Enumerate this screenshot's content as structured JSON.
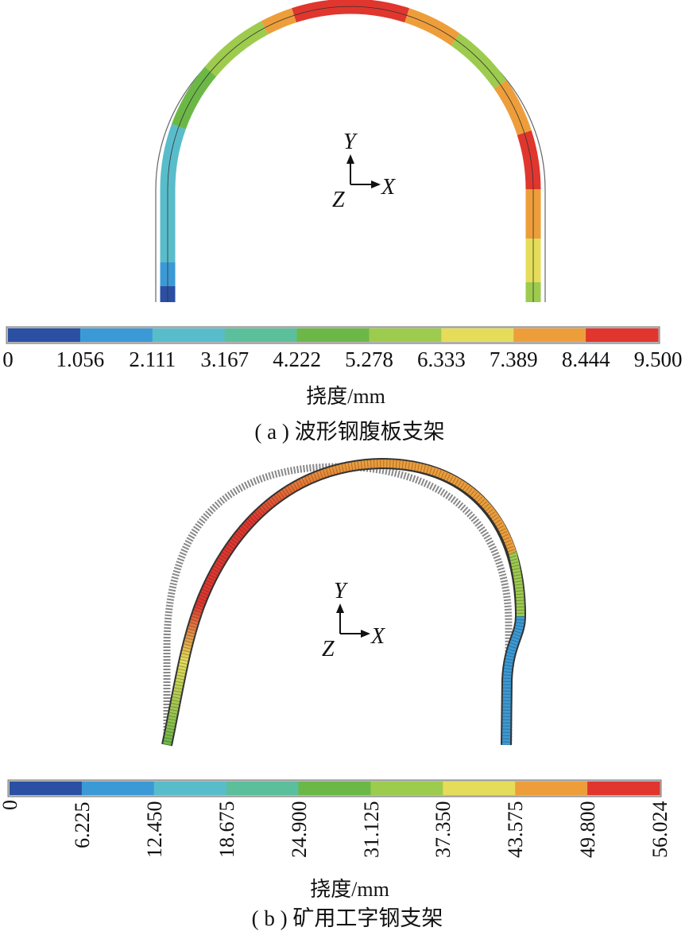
{
  "panel_a": {
    "caption": "( a ) 波形钢腹板支架",
    "unit": "挠度/mm",
    "ticks": [
      "0",
      "1.056",
      "2.111",
      "3.167",
      "4.222",
      "5.278",
      "6.333",
      "7.389",
      "8.444",
      "9.500"
    ],
    "axes": {
      "y": "Y",
      "x": "X",
      "z": "Z"
    }
  },
  "panel_b": {
    "caption": "( b ) 矿用工字钢支架",
    "unit": "挠度/mm",
    "ticks": [
      "0",
      "6.225",
      "12.450",
      "18.675",
      "24.900",
      "31.125",
      "37.350",
      "43.575",
      "49.800",
      "56.024"
    ],
    "axes": {
      "y": "Y",
      "x": "X",
      "z": "Z"
    }
  },
  "colors": [
    "#2b4fa3",
    "#3b9ad6",
    "#59bccb",
    "#5cbf9c",
    "#6cb847",
    "#9dcb4e",
    "#e5dd5a",
    "#ed9e3a",
    "#e0362e"
  ]
}
